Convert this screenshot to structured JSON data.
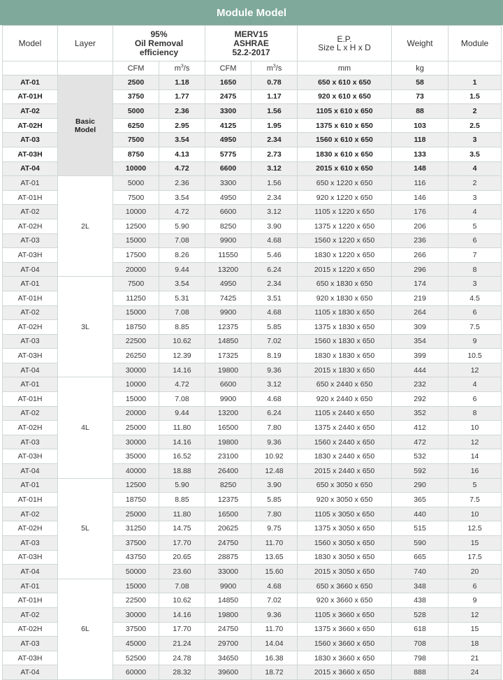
{
  "title": "Module Model",
  "headers": {
    "model": "Model",
    "layer": "Layer",
    "oil_line1": "95%",
    "oil_line2": "Oil Removal",
    "oil_line3": "efficiency",
    "merv_line1": "MERV15",
    "merv_line2": "ASHRAE",
    "merv_line3": "52.2-2017",
    "ep_line1": "E.P.",
    "ep_line2": "Size L x H x D",
    "weight": "Weight",
    "module": "Module"
  },
  "units": {
    "cfm1": "CFM",
    "m3s1": "m",
    "sup1": "3",
    "s1": "/s",
    "cfm2": "CFM",
    "m3s2": "m",
    "sup2": "3",
    "s2": "/s",
    "mm": "mm",
    "kg": "kg"
  },
  "groups": [
    {
      "layer": "Basic Model",
      "rows": [
        [
          "AT-01",
          "2500",
          "1.18",
          "1650",
          "0.78",
          "650 x 610 x 650",
          "58",
          "1"
        ],
        [
          "AT-01H",
          "3750",
          "1.77",
          "2475",
          "1.17",
          "920 x 610 x 650",
          "73",
          "1.5"
        ],
        [
          "AT-02",
          "5000",
          "2.36",
          "3300",
          "1.56",
          "1105 x 610 x 650",
          "88",
          "2"
        ],
        [
          "AT-02H",
          "6250",
          "2.95",
          "4125",
          "1.95",
          "1375 x 610 x 650",
          "103",
          "2.5"
        ],
        [
          "AT-03",
          "7500",
          "3.54",
          "4950",
          "2.34",
          "1560 x 610 x 650",
          "118",
          "3"
        ],
        [
          "AT-03H",
          "8750",
          "4.13",
          "5775",
          "2.73",
          "1830 x 610 x 650",
          "133",
          "3.5"
        ],
        [
          "AT-04",
          "10000",
          "4.72",
          "6600",
          "3.12",
          "2015 x 610 x 650",
          "148",
          "4"
        ]
      ]
    },
    {
      "layer": "2L",
      "rows": [
        [
          "AT-01",
          "5000",
          "2.36",
          "3300",
          "1.56",
          "650 x 1220 x 650",
          "116",
          "2"
        ],
        [
          "AT-01H",
          "7500",
          "3.54",
          "4950",
          "2.34",
          "920 x 1220 x 650",
          "146",
          "3"
        ],
        [
          "AT-02",
          "10000",
          "4.72",
          "6600",
          "3.12",
          "1105 x 1220 x 650",
          "176",
          "4"
        ],
        [
          "AT-02H",
          "12500",
          "5.90",
          "8250",
          "3.90",
          "1375 x 1220 x 650",
          "206",
          "5"
        ],
        [
          "AT-03",
          "15000",
          "7.08",
          "9900",
          "4.68",
          "1560 x 1220 x 650",
          "236",
          "6"
        ],
        [
          "AT-03H",
          "17500",
          "8.26",
          "11550",
          "5.46",
          "1830 x 1220 x 650",
          "266",
          "7"
        ],
        [
          "AT-04",
          "20000",
          "9.44",
          "13200",
          "6.24",
          "2015 x 1220 x 650",
          "296",
          "8"
        ]
      ]
    },
    {
      "layer": "3L",
      "rows": [
        [
          "AT-01",
          "7500",
          "3.54",
          "4950",
          "2.34",
          "650 x 1830 x 650",
          "174",
          "3"
        ],
        [
          "AT-01H",
          "11250",
          "5.31",
          "7425",
          "3.51",
          "920 x 1830 x 650",
          "219",
          "4.5"
        ],
        [
          "AT-02",
          "15000",
          "7.08",
          "9900",
          "4.68",
          "1105 x 1830 x 650",
          "264",
          "6"
        ],
        [
          "AT-02H",
          "18750",
          "8.85",
          "12375",
          "5.85",
          "1375 x 1830 x 650",
          "309",
          "7.5"
        ],
        [
          "AT-03",
          "22500",
          "10.62",
          "14850",
          "7.02",
          "1560 x 1830 x 650",
          "354",
          "9"
        ],
        [
          "AT-03H",
          "26250",
          "12.39",
          "17325",
          "8.19",
          "1830 x 1830 x 650",
          "399",
          "10.5"
        ],
        [
          "AT-04",
          "30000",
          "14.16",
          "19800",
          "9.36",
          "2015 x 1830 x 650",
          "444",
          "12"
        ]
      ]
    },
    {
      "layer": "4L",
      "rows": [
        [
          "AT-01",
          "10000",
          "4.72",
          "6600",
          "3.12",
          "650 x 2440 x 650",
          "232",
          "4"
        ],
        [
          "AT-01H",
          "15000",
          "7.08",
          "9900",
          "4.68",
          "920 x 2440 x 650",
          "292",
          "6"
        ],
        [
          "AT-02",
          "20000",
          "9.44",
          "13200",
          "6.24",
          "1105 x 2440 x 650",
          "352",
          "8"
        ],
        [
          "AT-02H",
          "25000",
          "11.80",
          "16500",
          "7.80",
          "1375 x 2440 x 650",
          "412",
          "10"
        ],
        [
          "AT-03",
          "30000",
          "14.16",
          "19800",
          "9.36",
          "1560 x 2440 x 650",
          "472",
          "12"
        ],
        [
          "AT-03H",
          "35000",
          "16.52",
          "23100",
          "10.92",
          "1830 x 2440 x 650",
          "532",
          "14"
        ],
        [
          "AT-04",
          "40000",
          "18.88",
          "26400",
          "12.48",
          "2015 x 2440 x 650",
          "592",
          "16"
        ]
      ]
    },
    {
      "layer": "5L",
      "rows": [
        [
          "AT-01",
          "12500",
          "5.90",
          "8250",
          "3.90",
          "650 x 3050 x 650",
          "290",
          "5"
        ],
        [
          "AT-01H",
          "18750",
          "8.85",
          "12375",
          "5.85",
          "920 x 3050 x 650",
          "365",
          "7.5"
        ],
        [
          "AT-02",
          "25000",
          "11.80",
          "16500",
          "7.80",
          "1105 x 3050 x 650",
          "440",
          "10"
        ],
        [
          "AT-02H",
          "31250",
          "14.75",
          "20625",
          "9.75",
          "1375 x 3050 x 650",
          "515",
          "12.5"
        ],
        [
          "AT-03",
          "37500",
          "17.70",
          "24750",
          "11.70",
          "1560 x 3050 x 650",
          "590",
          "15"
        ],
        [
          "AT-03H",
          "43750",
          "20.65",
          "28875",
          "13.65",
          "1830 x 3050 x 650",
          "665",
          "17.5"
        ],
        [
          "AT-04",
          "50000",
          "23.60",
          "33000",
          "15.60",
          "2015 x 3050 x 650",
          "740",
          "20"
        ]
      ]
    },
    {
      "layer": "6L",
      "rows": [
        [
          "AT-01",
          "15000",
          "7.08",
          "9900",
          "4.68",
          "650 x 3660 x 650",
          "348",
          "6"
        ],
        [
          "AT-01H",
          "22500",
          "10.62",
          "14850",
          "7.02",
          "920 x 3660 x 650",
          "438",
          "9"
        ],
        [
          "AT-02",
          "30000",
          "14.16",
          "19800",
          "9.36",
          "1105 x 3660 x 650",
          "528",
          "12"
        ],
        [
          "AT-02H",
          "37500",
          "17.70",
          "24750",
          "11.70",
          "1375 x 3660 x 650",
          "618",
          "15"
        ],
        [
          "AT-03",
          "45000",
          "21.24",
          "29700",
          "14.04",
          "1560 x 3660 x 650",
          "708",
          "18"
        ],
        [
          "AT-03H",
          "52500",
          "24.78",
          "34650",
          "16.38",
          "1830 x 3660 x 650",
          "798",
          "21"
        ],
        [
          "AT-04",
          "60000",
          "28.32",
          "39600",
          "18.72",
          "2015 x 3660 x 650",
          "888",
          "24"
        ]
      ]
    }
  ]
}
